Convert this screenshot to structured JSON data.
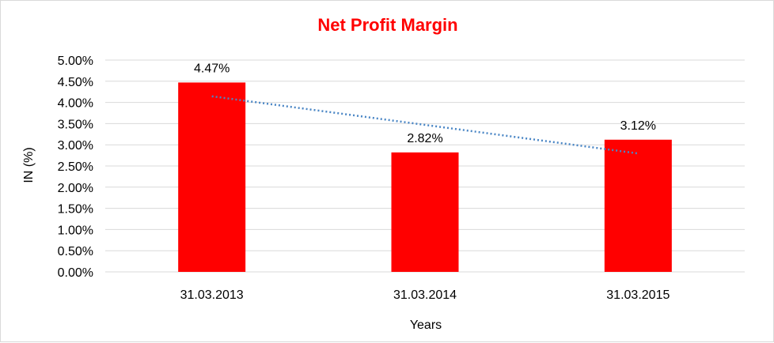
{
  "chart_data": {
    "type": "bar",
    "title": "Net Profit Margin",
    "xlabel": "Years",
    "ylabel": "IN (%)",
    "categories": [
      "31.03.2013",
      "31.03.2014",
      "31.03.2015"
    ],
    "series": [
      {
        "values": [
          4.47,
          2.82,
          3.12
        ],
        "data_labels": [
          "4.47%",
          "2.82%",
          "3.12%"
        ]
      }
    ],
    "ylim": [
      0,
      5
    ],
    "yticks": [
      0,
      0.5,
      1,
      1.5,
      2,
      2.5,
      3,
      3.5,
      4,
      4.5,
      5
    ],
    "ytick_labels": [
      "0.00%",
      "0.50%",
      "1.00%",
      "1.50%",
      "2.00%",
      "2.50%",
      "3.00%",
      "3.50%",
      "4.00%",
      "4.50%",
      "5.00%"
    ],
    "grid": true,
    "legend": "none",
    "trendline": {
      "type": "linear",
      "style": "dotted"
    },
    "colors": {
      "bar": "#ff0000",
      "title": "#ff0000",
      "trendline": "#4a86c5",
      "grid": "#d9d9d9"
    }
  }
}
